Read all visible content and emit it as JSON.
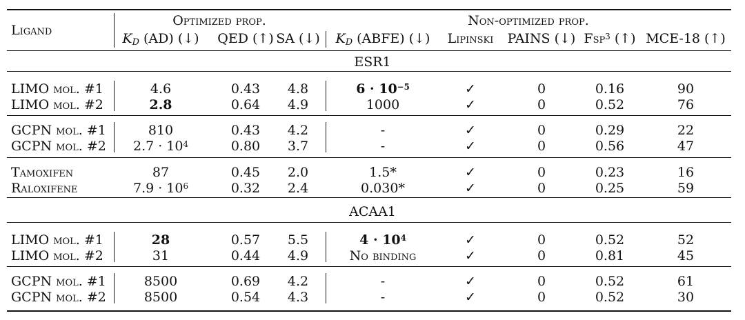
{
  "header": {
    "ligand": "Ligand",
    "optimized_group": "Optimized prop.",
    "nonoptimized_group": "Non-optimized prop.",
    "kd_symbol": "K",
    "kd_sub": "D",
    "kd_ad_suffix": "(AD) (↓)",
    "qed": "QED (↑)",
    "sa": "SA (↓)",
    "kd_abfe_suffix": "(ABFE) (↓)",
    "lipinski": "Lipinski",
    "pains": "PAINS (↓)",
    "fsp_base": "Fsp",
    "fsp_sup": "3",
    "fsp_suffix": "(↑)",
    "mce": "MCE-18 (↑)"
  },
  "sections": [
    {
      "title": "ESR1",
      "groups": [
        {
          "rows": [
            {
              "name_main": "LIMO",
              "name_sc": "mol. #1",
              "kd_ad": "4.6",
              "qed": "0.43",
              "sa": "4.8",
              "kd_abfe_base": "6 · 10",
              "kd_abfe_exp": "−5",
              "lipinski": "✓",
              "pains": "0",
              "fsp": "0.16",
              "mce": "90"
            },
            {
              "name_main": "LIMO",
              "name_sc": "mol. #2",
              "kd_ad": "2.8",
              "qed": "0.64",
              "sa": "4.9",
              "kd_abfe": "1000",
              "lipinski": "✓",
              "pains": "0",
              "fsp": "0.52",
              "mce": "76"
            }
          ]
        },
        {
          "rows": [
            {
              "name_main": "GCPN",
              "name_sc": "mol. #1",
              "kd_ad": "810",
              "qed": "0.43",
              "sa": "4.2",
              "kd_abfe": "-",
              "lipinski": "✓",
              "pains": "0",
              "fsp": "0.29",
              "mce": "22"
            },
            {
              "name_main": "GCPN",
              "name_sc": "mol. #2",
              "kd_ad_base": "2.7 · 10",
              "kd_ad_exp": "4",
              "qed": "0.80",
              "sa": "3.7",
              "kd_abfe": "-",
              "lipinski": "✓",
              "pains": "0",
              "fsp": "0.56",
              "mce": "47"
            }
          ]
        },
        {
          "rows": [
            {
              "name_sc": "Tamoxifen",
              "kd_ad": "87",
              "qed": "0.45",
              "sa": "2.0",
              "kd_abfe": "1.5*",
              "lipinski": "✓",
              "pains": "0",
              "fsp": "0.23",
              "mce": "16"
            },
            {
              "name_sc": "Raloxifene",
              "kd_ad_base": "7.9 · 10",
              "kd_ad_exp": "6",
              "qed": "0.32",
              "sa": "2.4",
              "kd_abfe": "0.030*",
              "lipinski": "✓",
              "pains": "0",
              "fsp": "0.25",
              "mce": "59"
            }
          ]
        }
      ]
    },
    {
      "title": "ACAA1",
      "groups": [
        {
          "rows": [
            {
              "name_main": "LIMO",
              "name_sc": "mol. #1",
              "kd_ad": "28",
              "qed": "0.57",
              "sa": "5.5",
              "kd_abfe_base": "4 · 10",
              "kd_abfe_exp": "4",
              "lipinski": "✓",
              "pains": "0",
              "fsp": "0.52",
              "mce": "52"
            },
            {
              "name_main": "LIMO",
              "name_sc": "mol. #2",
              "kd_ad": "31",
              "qed": "0.44",
              "sa": "4.9",
              "kd_abfe": "No binding",
              "lipinski": "✓",
              "pains": "0",
              "fsp": "0.81",
              "mce": "45"
            }
          ]
        },
        {
          "rows": [
            {
              "name_main": "GCPN",
              "name_sc": "mol. #1",
              "kd_ad": "8500",
              "qed": "0.69",
              "sa": "4.2",
              "kd_abfe": "-",
              "lipinski": "✓",
              "pains": "0",
              "fsp": "0.52",
              "mce": "61"
            },
            {
              "name_main": "GCPN",
              "name_sc": "mol. #2",
              "kd_ad": "8500",
              "qed": "0.54",
              "sa": "4.3",
              "kd_abfe": "-",
              "lipinski": "✓",
              "pains": "0",
              "fsp": "0.52",
              "mce": "30"
            }
          ]
        }
      ]
    }
  ]
}
